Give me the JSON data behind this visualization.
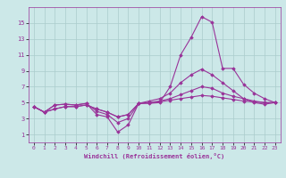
{
  "xlabel": "Windchill (Refroidissement éolien,°C)",
  "bg_color": "#cce8e8",
  "line_color": "#993399",
  "grid_color": "#aacccc",
  "xlim": [
    -0.5,
    23.5
  ],
  "ylim": [
    0,
    17
  ],
  "xticks": [
    0,
    1,
    2,
    3,
    4,
    5,
    6,
    7,
    8,
    9,
    10,
    11,
    12,
    13,
    14,
    15,
    16,
    17,
    18,
    19,
    20,
    21,
    22,
    23
  ],
  "yticks": [
    1,
    3,
    5,
    7,
    9,
    11,
    13,
    15
  ],
  "lines": [
    {
      "x": [
        0,
        1,
        2,
        3,
        4,
        5,
        6,
        7,
        8,
        9,
        10,
        11,
        12,
        13,
        14,
        15,
        16,
        17,
        18,
        19,
        20,
        21,
        22,
        23
      ],
      "y": [
        4.5,
        3.8,
        4.7,
        4.8,
        4.7,
        4.9,
        3.5,
        3.2,
        1.3,
        2.2,
        4.9,
        4.9,
        5.0,
        7.0,
        11.0,
        13.2,
        15.8,
        15.1,
        9.3,
        9.3,
        7.3,
        6.2,
        5.5,
        5.0
      ]
    },
    {
      "x": [
        0,
        1,
        2,
        3,
        4,
        5,
        6,
        7,
        8,
        9,
        10,
        11,
        12,
        13,
        14,
        15,
        16,
        17,
        18,
        19,
        20,
        21,
        22,
        23
      ],
      "y": [
        4.5,
        3.8,
        4.7,
        4.8,
        4.7,
        4.9,
        3.9,
        3.5,
        2.5,
        3.0,
        4.9,
        5.2,
        5.5,
        6.2,
        7.5,
        8.5,
        9.2,
        8.5,
        7.5,
        6.5,
        5.5,
        5.0,
        4.8,
        5.0
      ]
    },
    {
      "x": [
        0,
        1,
        2,
        3,
        4,
        5,
        6,
        7,
        8,
        9,
        10,
        11,
        12,
        13,
        14,
        15,
        16,
        17,
        18,
        19,
        20,
        21,
        22,
        23
      ],
      "y": [
        4.5,
        3.8,
        4.2,
        4.5,
        4.5,
        4.7,
        4.2,
        3.8,
        3.2,
        3.5,
        4.9,
        5.0,
        5.2,
        5.5,
        6.0,
        6.5,
        7.0,
        6.8,
        6.2,
        5.8,
        5.5,
        5.2,
        5.0,
        5.0
      ]
    },
    {
      "x": [
        0,
        1,
        2,
        3,
        4,
        5,
        6,
        7,
        8,
        9,
        10,
        11,
        12,
        13,
        14,
        15,
        16,
        17,
        18,
        19,
        20,
        21,
        22,
        23
      ],
      "y": [
        4.5,
        3.8,
        4.2,
        4.5,
        4.5,
        4.7,
        4.2,
        3.8,
        3.2,
        3.5,
        4.9,
        5.0,
        5.1,
        5.3,
        5.5,
        5.7,
        5.9,
        5.8,
        5.6,
        5.4,
        5.2,
        5.1,
        5.0,
        5.0
      ]
    }
  ]
}
